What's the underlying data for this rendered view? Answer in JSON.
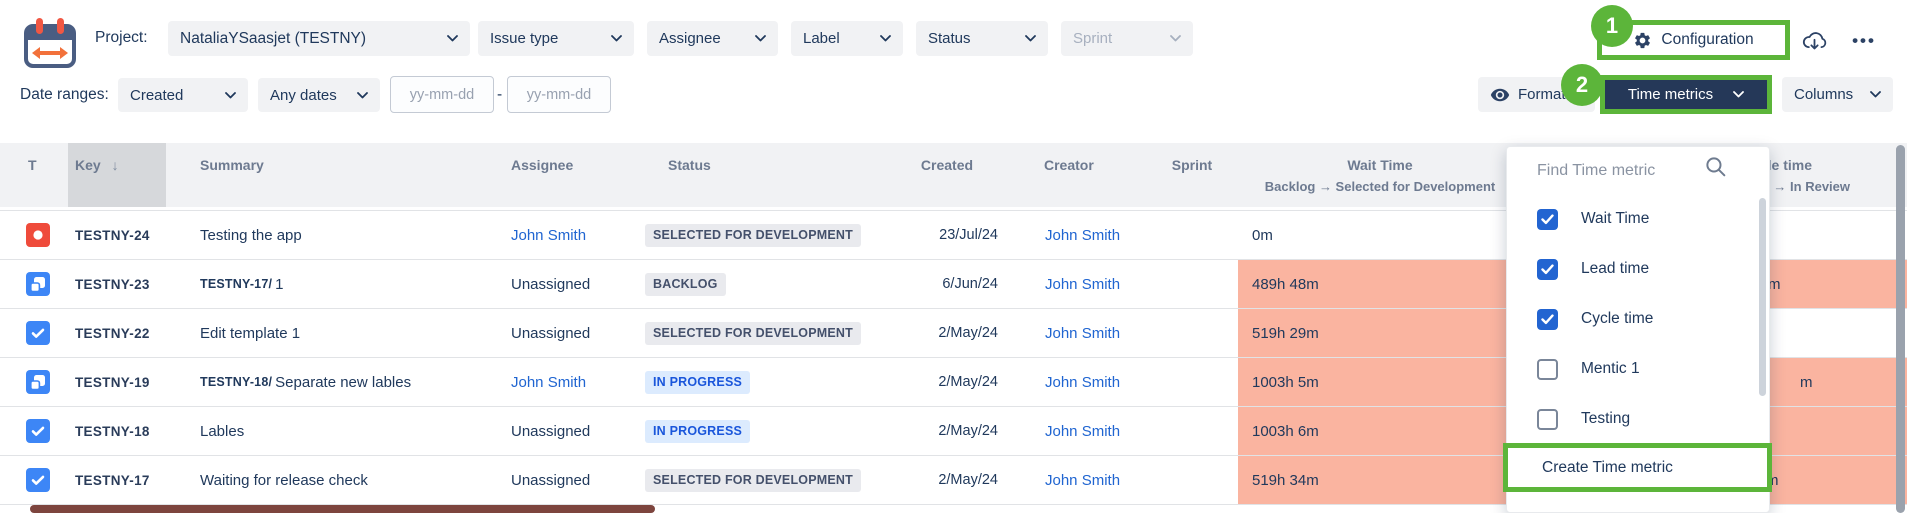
{
  "colors": {
    "navy_text": "#20395c",
    "navy_button_bg": "#253858",
    "link_blue": "#2065d1",
    "annotation_green": "#5cb53a",
    "alert_salmon": "#fab4a0",
    "checkbox_blue": "#2264d1",
    "badge_gray_bg": "#e9eaee",
    "badge_blue_bg": "#dcebfe",
    "bug_red": "#ef4b3b",
    "task_blue": "#3d86f6"
  },
  "annotations": {
    "step1": "1",
    "step2": "2"
  },
  "topbar": {
    "project_label": "Project:",
    "project_value": "NataliaYSaasjet (TESTNY)",
    "filters": [
      {
        "label": "Issue type",
        "disabled": false
      },
      {
        "label": "Assignee",
        "disabled": false
      },
      {
        "label": "Label",
        "disabled": false
      },
      {
        "label": "Status",
        "disabled": false
      },
      {
        "label": "Sprint",
        "disabled": true
      }
    ],
    "configuration_label": "Configuration",
    "menu_dots": "•••"
  },
  "filterbar": {
    "date_ranges_label": "Date ranges:",
    "date_field_value": "Created",
    "date_preset_value": "Any dates",
    "date_from_placeholder": "yy-mm-dd",
    "date_separator": "-",
    "date_to_placeholder": "yy-mm-dd",
    "format_label": "Format",
    "time_metrics_label": "Time metrics",
    "columns_label": "Columns"
  },
  "table": {
    "columns": {
      "type": "T",
      "key": "Key",
      "key_sort": "↓",
      "summary": "Summary",
      "assignee": "Assignee",
      "status": "Status",
      "created": "Created",
      "creator": "Creator",
      "sprint": "Sprint",
      "wait_time_title": "Wait Time",
      "wait_time_subtitle": "Backlog → Selected for Development",
      "cycle_time_title": "Cycle time",
      "cycle_time_subtitle": "In Progress → In Review"
    },
    "rows": [
      {
        "type": "bug",
        "key": "TESTNY-24",
        "summary_prefix": "",
        "summary": "Testing the app",
        "assignee": "John Smith",
        "assignee_is_link": true,
        "status": "SELECTED FOR DEVELOPMENT",
        "status_style": "gray",
        "created": "23/Jul/24",
        "creator": "John Smith",
        "sprint": "",
        "wait_time": "0m",
        "wait_alert": false,
        "cycle_alert": false,
        "cycle_fragment": ""
      },
      {
        "type": "subtask",
        "key": "TESTNY-23",
        "summary_prefix": "TESTNY-17/",
        "summary": "1",
        "assignee": "Unassigned",
        "assignee_is_link": false,
        "status": "BACKLOG",
        "status_style": "gray",
        "created": "6/Jun/24",
        "creator": "John Smith",
        "sprint": "",
        "wait_time": "489h 48m",
        "wait_alert": true,
        "cycle_alert": true,
        "cycle_fragment": "m"
      },
      {
        "type": "task",
        "key": "TESTNY-22",
        "summary_prefix": "",
        "summary": "Edit template 1",
        "assignee": "Unassigned",
        "assignee_is_link": false,
        "status": "SELECTED FOR DEVELOPMENT",
        "status_style": "gray",
        "created": "2/May/24",
        "creator": "John Smith",
        "sprint": "",
        "wait_time": "519h 29m",
        "wait_alert": true,
        "cycle_alert": false,
        "cycle_fragment": ""
      },
      {
        "type": "subtask",
        "key": "TESTNY-19",
        "summary_prefix": "TESTNY-18/",
        "summary": "Separate new lables",
        "assignee": "John Smith",
        "assignee_is_link": true,
        "status": "IN PROGRESS",
        "status_style": "blue",
        "created": "2/May/24",
        "creator": "John Smith",
        "sprint": "",
        "wait_time": "1003h 5m",
        "wait_alert": true,
        "cycle_alert": true,
        "cycle_fragment": "m"
      },
      {
        "type": "task",
        "key": "TESTNY-18",
        "summary_prefix": "",
        "summary": "Lables",
        "assignee": "Unassigned",
        "assignee_is_link": false,
        "status": "IN PROGRESS",
        "status_style": "blue",
        "created": "2/May/24",
        "creator": "John Smith",
        "sprint": "",
        "wait_time": "1003h 6m",
        "wait_alert": true,
        "cycle_alert": true,
        "cycle_fragment": ""
      },
      {
        "type": "task",
        "key": "TESTNY-17",
        "summary_prefix": "",
        "summary": "Waiting for release check",
        "assignee": "Unassigned",
        "assignee_is_link": false,
        "status": "SELECTED FOR DEVELOPMENT",
        "status_style": "gray",
        "created": "2/May/24",
        "creator": "John Smith",
        "sprint": "",
        "wait_time": "519h 34m",
        "wait_alert": true,
        "cycle_alert": true,
        "cycle_fragment": "m"
      }
    ]
  },
  "time_metrics_dropdown": {
    "search_placeholder": "Find Time metric",
    "items": [
      {
        "label": "Wait Time",
        "checked": true
      },
      {
        "label": "Lead time",
        "checked": true
      },
      {
        "label": "Cycle time",
        "checked": true
      },
      {
        "label": "Mentic 1",
        "checked": false
      },
      {
        "label": "Testing",
        "checked": false
      }
    ],
    "create_label": "Create Time metric"
  }
}
